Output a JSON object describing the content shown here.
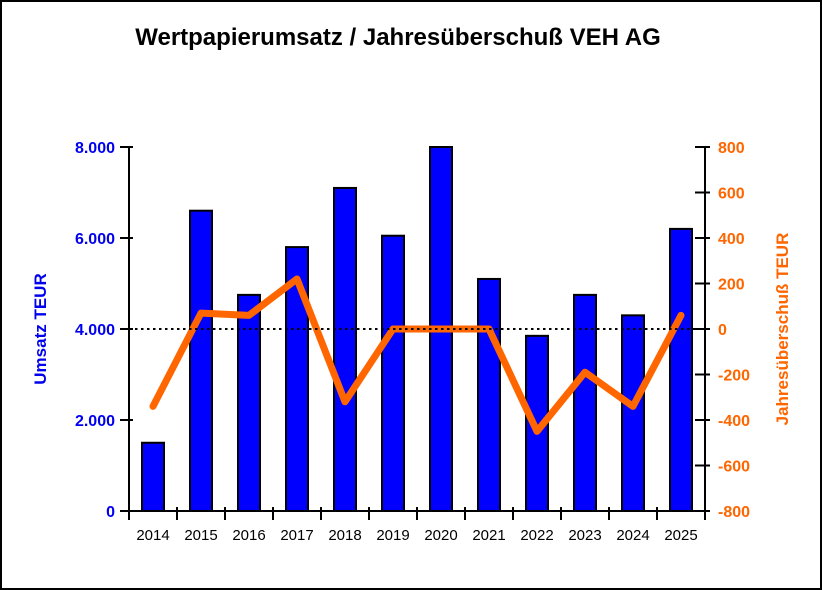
{
  "title": "Wertpapierumsatz / Jahresüberschuß VEH AG",
  "chart_data": {
    "type": "bar+line (combo, dual y-axes)",
    "title": "Wertpapierumsatz / Jahresüberschuß VEH AG",
    "categories": [
      "2014",
      "2015",
      "2016",
      "2017",
      "2018",
      "2019",
      "2020",
      "2021",
      "2022",
      "2023",
      "2024",
      "2025"
    ],
    "series": [
      {
        "name": "Umsatz TEUR",
        "type": "bar",
        "y_axis": "left",
        "color": "#0000FF",
        "border_color": "#000000",
        "values": [
          1500,
          6600,
          4750,
          5800,
          7100,
          6050,
          8000,
          5100,
          3850,
          4750,
          4300,
          6200
        ]
      },
      {
        "name": "Jahresüberschuß TEUR",
        "type": "line",
        "y_axis": "right",
        "color": "#FF6600",
        "values": [
          -340,
          70,
          60,
          220,
          -320,
          0,
          0,
          0,
          -450,
          -190,
          -340,
          60
        ]
      }
    ],
    "left_axis": {
      "label": "Umsatz TEUR",
      "min": 0,
      "max": 8000,
      "tick_values": [
        0,
        2000,
        4000,
        6000,
        8000
      ],
      "tick_labels": [
        "0",
        "2.000",
        "4.000",
        "6.000",
        "8.000"
      ],
      "text_color": "#0000EE"
    },
    "right_axis": {
      "label": "Jahresüberschuß TEUR",
      "min": -800,
      "max": 800,
      "tick_values": [
        -800,
        -600,
        -400,
        -200,
        0,
        200,
        400,
        600,
        800
      ],
      "tick_labels": [
        "-800",
        "-600",
        "-400",
        "-200",
        "0",
        "200",
        "400",
        "600",
        "800"
      ],
      "text_color": "#FF6600"
    },
    "reference_line": {
      "axis": "right",
      "value": 0,
      "style": "dotted",
      "color": "#000000"
    },
    "grid": false,
    "legend_position": "none",
    "background": "#FFFFFF",
    "frame_color": "#000000",
    "axis_color": "#000000"
  }
}
